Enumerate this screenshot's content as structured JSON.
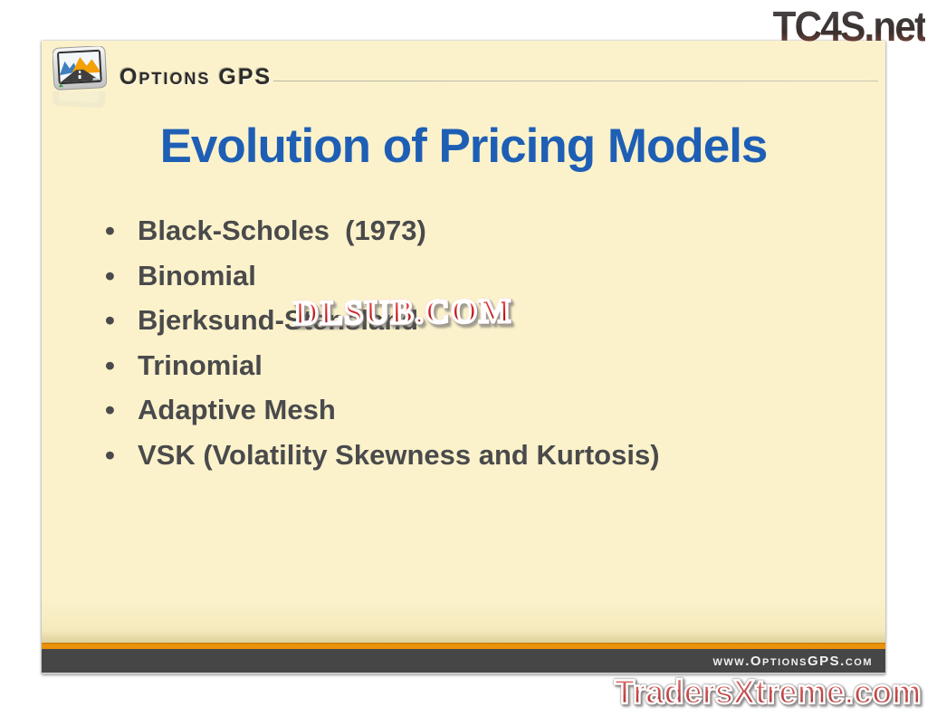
{
  "watermarks": {
    "top_right": "TC4S.net",
    "center": "DLSUB.COM",
    "bottom_right": "TradersXtreme.com"
  },
  "slide": {
    "logo": {
      "brand": "Options GPS",
      "icon": "gps-device-icon"
    },
    "title": "Evolution of Pricing Models",
    "bullet_char": "•",
    "bullets": [
      "Black-Scholes  (1973)",
      "Binomial",
      "Bjerksund-Stensland",
      "Trinomial",
      "Adaptive Mesh",
      "VSK (Volatility Skewness and Kurtosis)"
    ],
    "footer": {
      "url": "www.OptionsGPS.com"
    }
  },
  "colors": {
    "slide_background": "#FBF2CB",
    "title_blue": "#1E5FB5",
    "bullet_gray": "#4A4A4C",
    "footer_orange": "#E8900C",
    "footer_bar": "#464646",
    "watermark_red": "#C01616",
    "traders_red": "#B93D3D"
  }
}
